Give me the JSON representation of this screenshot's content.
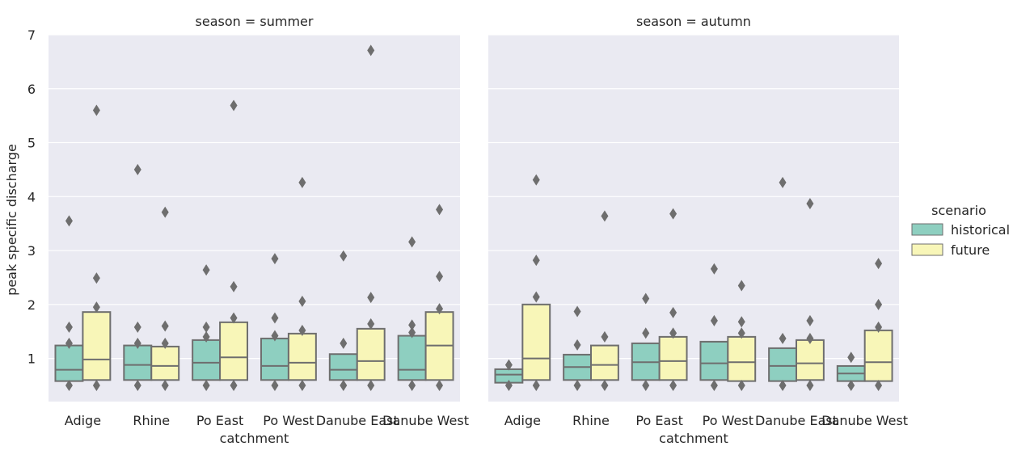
{
  "chart_data": {
    "type": "boxen",
    "ylabel": "peak specific discharge",
    "xlabel": "catchment",
    "ylim": [
      0.2,
      7.0
    ],
    "yticks": [
      1,
      2,
      3,
      4,
      5,
      6,
      7
    ],
    "categories": [
      "Adige",
      "Rhine",
      "Po East",
      "Po West",
      "Danube East",
      "Danube West"
    ],
    "legend": {
      "title": "scenario",
      "position": "right",
      "entries": [
        {
          "name": "historical",
          "color": "#8ecfc0"
        },
        {
          "name": "future",
          "color": "#f8f6b8"
        }
      ]
    },
    "colors": {
      "background": "#eaeaf2",
      "grid": "#ffffff",
      "edge": "#6e6e6e",
      "outlier": "#6e6e6e"
    },
    "grid": true,
    "facets": [
      {
        "title": "season = summer",
        "series": [
          {
            "name": "historical",
            "boxes": [
              {
                "low": 0.58,
                "median": 0.79,
                "high": 1.24,
                "outliers": [
                  0.5,
                  1.28,
                  1.58,
                  3.55
                ]
              },
              {
                "low": 0.6,
                "median": 0.88,
                "high": 1.24,
                "outliers": [
                  0.5,
                  1.28,
                  1.58,
                  4.5
                ]
              },
              {
                "low": 0.6,
                "median": 0.92,
                "high": 1.34,
                "outliers": [
                  0.5,
                  1.4,
                  1.58,
                  2.64
                ]
              },
              {
                "low": 0.6,
                "median": 0.86,
                "high": 1.37,
                "outliers": [
                  0.5,
                  1.42,
                  1.75,
                  2.85
                ]
              },
              {
                "low": 0.6,
                "median": 0.79,
                "high": 1.08,
                "outliers": [
                  0.5,
                  1.28,
                  2.9
                ]
              },
              {
                "low": 0.6,
                "median": 0.79,
                "high": 1.42,
                "outliers": [
                  0.5,
                  1.48,
                  1.62,
                  3.16
                ]
              }
            ]
          },
          {
            "name": "future",
            "boxes": [
              {
                "low": 0.6,
                "median": 0.98,
                "high": 1.86,
                "outliers": [
                  0.5,
                  1.95,
                  2.49,
                  5.6
                ]
              },
              {
                "low": 0.6,
                "median": 0.86,
                "high": 1.22,
                "outliers": [
                  0.5,
                  1.28,
                  1.6,
                  3.71
                ]
              },
              {
                "low": 0.6,
                "median": 1.02,
                "high": 1.67,
                "outliers": [
                  0.5,
                  1.75,
                  2.33,
                  5.69
                ]
              },
              {
                "low": 0.6,
                "median": 0.92,
                "high": 1.46,
                "outliers": [
                  0.5,
                  1.52,
                  2.06,
                  4.26
                ]
              },
              {
                "low": 0.6,
                "median": 0.95,
                "high": 1.55,
                "outliers": [
                  0.5,
                  1.64,
                  2.13,
                  6.71
                ]
              },
              {
                "low": 0.6,
                "median": 1.24,
                "high": 1.86,
                "outliers": [
                  0.5,
                  1.92,
                  2.52,
                  3.76
                ]
              }
            ]
          }
        ]
      },
      {
        "title": "season = autumn",
        "series": [
          {
            "name": "historical",
            "boxes": [
              {
                "low": 0.55,
                "median": 0.7,
                "high": 0.8,
                "outliers": [
                  0.5,
                  0.88
                ]
              },
              {
                "low": 0.6,
                "median": 0.84,
                "high": 1.07,
                "outliers": [
                  0.5,
                  1.25,
                  1.87
                ]
              },
              {
                "low": 0.6,
                "median": 0.93,
                "high": 1.28,
                "outliers": [
                  0.5,
                  1.47,
                  2.11
                ]
              },
              {
                "low": 0.6,
                "median": 0.91,
                "high": 1.31,
                "outliers": [
                  0.5,
                  1.7,
                  2.66
                ]
              },
              {
                "low": 0.58,
                "median": 0.86,
                "high": 1.19,
                "outliers": [
                  0.5,
                  1.37,
                  4.26
                ]
              },
              {
                "low": 0.58,
                "median": 0.72,
                "high": 0.86,
                "outliers": [
                  0.5,
                  1.02
                ]
              }
            ]
          },
          {
            "name": "future",
            "boxes": [
              {
                "low": 0.6,
                "median": 1.0,
                "high": 2.0,
                "outliers": [
                  0.5,
                  2.14,
                  2.82,
                  4.31
                ]
              },
              {
                "low": 0.6,
                "median": 0.88,
                "high": 1.24,
                "outliers": [
                  0.5,
                  1.4,
                  3.64
                ]
              },
              {
                "low": 0.6,
                "median": 0.95,
                "high": 1.4,
                "outliers": [
                  0.5,
                  1.47,
                  1.85,
                  3.68
                ]
              },
              {
                "low": 0.58,
                "median": 0.93,
                "high": 1.4,
                "outliers": [
                  0.5,
                  1.47,
                  1.68,
                  2.35
                ]
              },
              {
                "low": 0.6,
                "median": 0.91,
                "high": 1.34,
                "outliers": [
                  0.5,
                  1.37,
                  1.7,
                  3.87
                ]
              },
              {
                "low": 0.58,
                "median": 0.93,
                "high": 1.52,
                "outliers": [
                  0.5,
                  1.58,
                  2.0,
                  2.76
                ]
              }
            ]
          }
        ]
      }
    ]
  }
}
